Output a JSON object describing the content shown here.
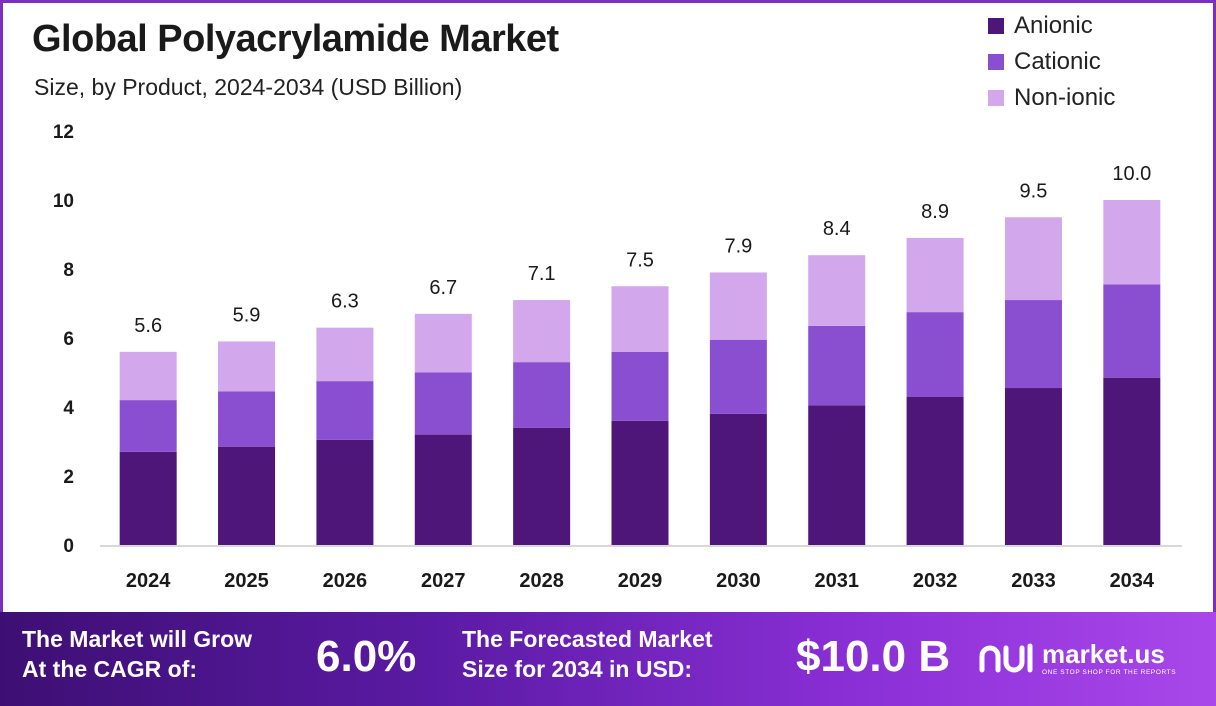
{
  "title": "Global Polyacrylamide Market",
  "subtitle": "Size, by Product, 2024-2034 (USD Billion)",
  "colors": {
    "anionic": "#4f1679",
    "cationic": "#8a4fd0",
    "nonionic": "#d3a7ec",
    "axis": "#cccccc",
    "footer_start": "#3d0f73",
    "footer_end": "#a947ea"
  },
  "chart_data": {
    "type": "bar",
    "stacked": true,
    "categories": [
      "2024",
      "2025",
      "2026",
      "2027",
      "2028",
      "2029",
      "2030",
      "2031",
      "2032",
      "2033",
      "2034"
    ],
    "series": [
      {
        "name": "Anionic",
        "values": [
          2.7,
          2.85,
          3.05,
          3.2,
          3.4,
          3.6,
          3.8,
          4.05,
          4.3,
          4.55,
          4.85
        ]
      },
      {
        "name": "Cationic",
        "values": [
          1.5,
          1.6,
          1.7,
          1.8,
          1.9,
          2.0,
          2.15,
          2.3,
          2.45,
          2.55,
          2.7
        ]
      },
      {
        "name": "Non-ionic",
        "values": [
          1.4,
          1.45,
          1.55,
          1.7,
          1.8,
          1.9,
          1.95,
          2.05,
          2.15,
          2.4,
          2.45
        ]
      }
    ],
    "totals": [
      "5.6",
      "5.9",
      "6.3",
      "6.7",
      "7.1",
      "7.5",
      "7.9",
      "8.4",
      "8.9",
      "9.5",
      "10.0"
    ],
    "ylim": [
      0,
      12
    ],
    "yticks": [
      "0",
      "2",
      "4",
      "6",
      "8",
      "10",
      "12"
    ],
    "xlabel": "",
    "ylabel": "",
    "legend_position": "top-right",
    "grid": false
  },
  "footer": {
    "cagr_label_line1": "The Market will Grow",
    "cagr_label_line2": "At the CAGR of:",
    "cagr_value": "6.0%",
    "forecast_label_line1": "The Forecasted Market",
    "forecast_label_line2": "Size for 2034 in USD:",
    "forecast_value": "$10.0 B",
    "brand_name": "market.us",
    "brand_tagline": "ONE STOP SHOP FOR THE REPORTS"
  }
}
